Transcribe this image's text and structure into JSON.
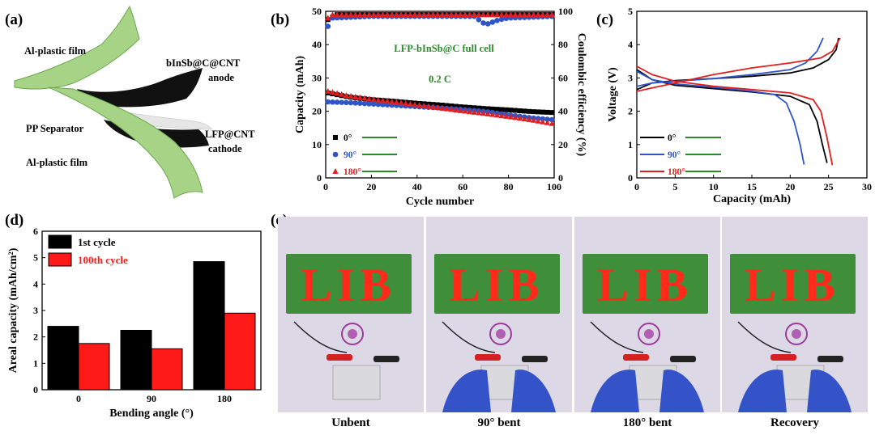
{
  "panels": {
    "a": "(a)",
    "b": "(b)",
    "c": "(c)",
    "d": "(d)",
    "e": "(e)"
  },
  "schematic": {
    "labels": [
      "Al-plastic film",
      "bInSb@C@CNT",
      "anode",
      "PP Separator",
      "LFP@CNT",
      "cathode",
      "Al-plastic film"
    ],
    "colors": {
      "film": "#a6d385",
      "film_dark": "#6aa84f",
      "electrode": "#111111",
      "separator": "#e6e6e6"
    }
  },
  "photos": {
    "captions": [
      "Unbent",
      "90° bent",
      "180° bent",
      "Recovery"
    ],
    "sign_text": "LIB",
    "colors": {
      "board": "#3e8e3a",
      "led": "#ff2a1a",
      "glove": "#3553c8",
      "bg": "#ddd8e6"
    }
  },
  "chart_data": [
    {
      "id": "b",
      "type": "scatter",
      "annotation_title": "LFP-bInSb@C full cell",
      "annotation_rate": "0.2 C",
      "xlabel": "Cycle number",
      "ylabel": "Capacity (mAh)",
      "y2label": "Coulombic efficiency (%)",
      "xlim": [
        0,
        100
      ],
      "ylim": [
        0,
        50
      ],
      "y2lim": [
        0,
        100
      ],
      "xticks": [
        "0",
        "20",
        "40",
        "60",
        "80",
        "100"
      ],
      "yticks": [
        "0",
        "10",
        "20",
        "30",
        "40",
        "50"
      ],
      "y2ticks": [
        "0",
        "20",
        "40",
        "60",
        "80",
        "100"
      ],
      "legend": [
        "0°",
        "90°",
        "180°"
      ],
      "series": [
        {
          "name": "0°",
          "color": "#000000",
          "marker": "square",
          "capacity": [
            [
              1,
              25.5
            ],
            [
              10,
              24.3
            ],
            [
              20,
              23.5
            ],
            [
              30,
              23.0
            ],
            [
              40,
              22.4
            ],
            [
              50,
              21.9
            ],
            [
              60,
              21.3
            ],
            [
              70,
              20.8
            ],
            [
              80,
              20.4
            ],
            [
              90,
              19.9
            ],
            [
              100,
              19.6
            ]
          ],
          "ce": [
            [
              1,
              95
            ],
            [
              5,
              98
            ],
            [
              20,
              98
            ],
            [
              50,
              98
            ],
            [
              80,
              98
            ],
            [
              100,
              98
            ]
          ]
        },
        {
          "name": "90°",
          "color": "#2e55c8",
          "marker": "circle",
          "capacity": [
            [
              1,
              22.8
            ],
            [
              10,
              22.6
            ],
            [
              20,
              22.2
            ],
            [
              30,
              21.8
            ],
            [
              40,
              21.4
            ],
            [
              50,
              21.0
            ],
            [
              60,
              20.5
            ],
            [
              70,
              19.9
            ],
            [
              80,
              18.9
            ],
            [
              90,
              18.0
            ],
            [
              100,
              17.4
            ]
          ],
          "ce": [
            [
              1,
              91
            ],
            [
              3,
              96
            ],
            [
              20,
              97
            ],
            [
              65,
              97
            ],
            [
              70,
              92
            ],
            [
              72,
              93
            ],
            [
              76,
              95
            ],
            [
              80,
              96
            ],
            [
              100,
              97
            ]
          ]
        },
        {
          "name": "180°",
          "color": "#e02020",
          "marker": "triangle",
          "capacity": [
            [
              1,
              26.0
            ],
            [
              10,
              24.6
            ],
            [
              20,
              23.6
            ],
            [
              30,
              22.8
            ],
            [
              40,
              21.9
            ],
            [
              50,
              21.0
            ],
            [
              60,
              20.1
            ],
            [
              70,
              19.3
            ],
            [
              80,
              18.4
            ],
            [
              90,
              17.4
            ],
            [
              100,
              16.2
            ]
          ],
          "ce": [
            [
              1,
              96
            ],
            [
              3,
              98
            ],
            [
              20,
              98
            ],
            [
              50,
              98
            ],
            [
              80,
              98
            ],
            [
              100,
              98
            ]
          ]
        }
      ]
    },
    {
      "id": "c",
      "type": "line",
      "xlabel": "Capacity (mAh)",
      "ylabel": "Voltage (V)",
      "xlim": [
        0,
        30
      ],
      "ylim": [
        0,
        5
      ],
      "xticks": [
        "0",
        "5",
        "10",
        "15",
        "20",
        "25",
        "30"
      ],
      "yticks": [
        "0",
        "1",
        "2",
        "3",
        "4",
        "5"
      ],
      "legend": [
        "0°",
        "90°",
        "180°"
      ],
      "series": [
        {
          "name": "0°",
          "color": "#000000",
          "charge": [
            [
              0,
              2.65
            ],
            [
              2,
              2.85
            ],
            [
              5,
              2.92
            ],
            [
              10,
              2.98
            ],
            [
              15,
              3.05
            ],
            [
              20,
              3.15
            ],
            [
              23,
              3.3
            ],
            [
              25,
              3.55
            ],
            [
              26,
              3.85
            ],
            [
              26.3,
              4.2
            ]
          ],
          "discharge": [
            [
              0,
              3.25
            ],
            [
              2,
              2.95
            ],
            [
              5,
              2.78
            ],
            [
              10,
              2.68
            ],
            [
              15,
              2.58
            ],
            [
              20,
              2.45
            ],
            [
              22.5,
              2.2
            ],
            [
              23.5,
              1.7
            ],
            [
              24.2,
              1.0
            ],
            [
              24.8,
              0.45
            ]
          ]
        },
        {
          "name": "90°",
          "color": "#2e55c8",
          "charge": [
            [
              0,
              2.75
            ],
            [
              2,
              2.85
            ],
            [
              5,
              2.9
            ],
            [
              10,
              2.98
            ],
            [
              15,
              3.1
            ],
            [
              20,
              3.25
            ],
            [
              22,
              3.45
            ],
            [
              23.5,
              3.8
            ],
            [
              24.3,
              4.2
            ]
          ],
          "discharge": [
            [
              0,
              3.2
            ],
            [
              2,
              2.95
            ],
            [
              5,
              2.82
            ],
            [
              10,
              2.72
            ],
            [
              15,
              2.6
            ],
            [
              18,
              2.5
            ],
            [
              19.5,
              2.25
            ],
            [
              20.5,
              1.7
            ],
            [
              21.3,
              1.0
            ],
            [
              21.8,
              0.4
            ]
          ]
        },
        {
          "name": "180°",
          "color": "#e02020",
          "charge": [
            [
              0,
              2.6
            ],
            [
              2,
              2.7
            ],
            [
              5,
              2.85
            ],
            [
              10,
              3.1
            ],
            [
              15,
              3.3
            ],
            [
              20,
              3.45
            ],
            [
              24,
              3.6
            ],
            [
              25.5,
              3.8
            ],
            [
              26.5,
              4.2
            ]
          ],
          "discharge": [
            [
              0,
              3.35
            ],
            [
              2,
              3.1
            ],
            [
              5,
              2.9
            ],
            [
              10,
              2.75
            ],
            [
              15,
              2.65
            ],
            [
              20,
              2.55
            ],
            [
              23,
              2.35
            ],
            [
              24,
              2.0
            ],
            [
              24.8,
              1.2
            ],
            [
              25.5,
              0.38
            ]
          ]
        }
      ]
    },
    {
      "id": "d",
      "type": "bar",
      "xlabel": "Bending angle (°)",
      "ylabel": "Areal capacity (mAh/cm²)",
      "categories": [
        "0",
        "90",
        "180"
      ],
      "ylim": [
        0,
        6
      ],
      "yticks": [
        "0",
        "1",
        "2",
        "3",
        "4",
        "5",
        "6"
      ],
      "legend_placement": "top-left",
      "series": [
        {
          "name": "1st cycle",
          "color": "#000000",
          "values": [
            2.4,
            2.25,
            4.85
          ]
        },
        {
          "name": "100th cycle",
          "color": "#ff1a1a",
          "values": [
            1.75,
            1.55,
            2.9
          ]
        }
      ]
    }
  ]
}
